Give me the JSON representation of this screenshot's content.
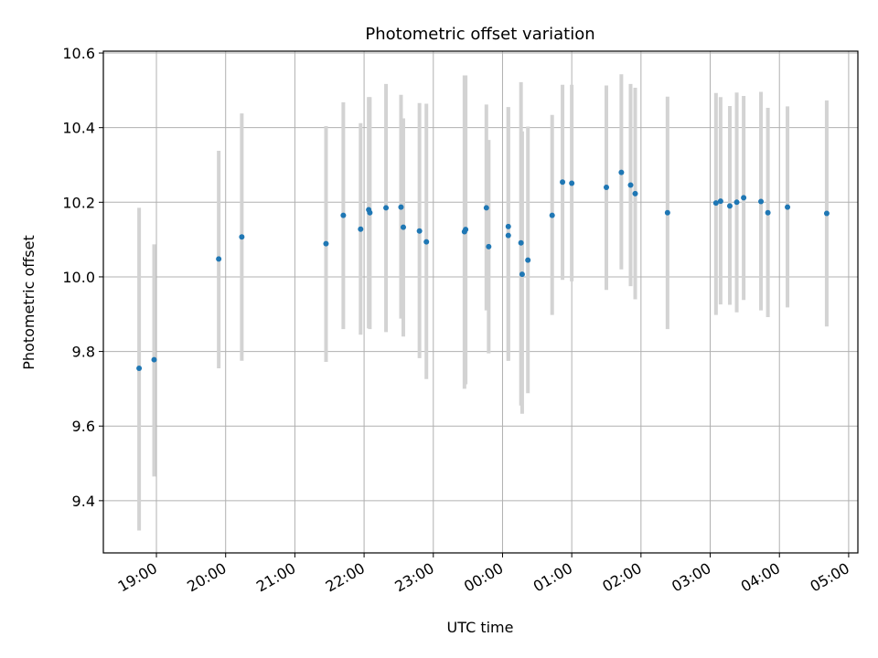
{
  "chart_data": {
    "type": "scatter",
    "title": "Photometric offset variation",
    "xlabel": "UTC time",
    "ylabel": "Photometric offset",
    "xlim": [
      "18:14",
      "24+05:08"
    ],
    "ylim": [
      9.26,
      10.605
    ],
    "grid": true,
    "point_color": "#1f77b4",
    "errorbar_color": "#d3d3d3",
    "x_ticks": [
      "19:00",
      "20:00",
      "21:00",
      "22:00",
      "23:00",
      "00:00",
      "01:00",
      "02:00",
      "03:00",
      "04:00",
      "05:00"
    ],
    "y_ticks": [
      "9.4",
      "9.6",
      "9.8",
      "10.0",
      "10.2",
      "10.4",
      "10.6"
    ],
    "points": [
      {
        "t": "18:45",
        "y": 9.755,
        "lo": 9.32,
        "hi": 10.185
      },
      {
        "t": "18:58",
        "y": 9.778,
        "lo": 9.465,
        "hi": 10.087
      },
      {
        "t": "19:54",
        "y": 10.048,
        "lo": 9.755,
        "hi": 10.338
      },
      {
        "t": "20:14",
        "y": 10.107,
        "lo": 9.775,
        "hi": 10.438
      },
      {
        "t": "21:27",
        "y": 10.089,
        "lo": 9.772,
        "hi": 10.404
      },
      {
        "t": "21:42",
        "y": 10.165,
        "lo": 9.86,
        "hi": 10.468
      },
      {
        "t": "21:57",
        "y": 10.128,
        "lo": 9.845,
        "hi": 10.412
      },
      {
        "t": "22:04",
        "y": 10.18,
        "lo": 9.862,
        "hi": 10.482
      },
      {
        "t": "22:05",
        "y": 10.172,
        "lo": 9.86,
        "hi": 10.482
      },
      {
        "t": "22:19",
        "y": 10.185,
        "lo": 9.852,
        "hi": 10.517
      },
      {
        "t": "22:32",
        "y": 10.187,
        "lo": 9.888,
        "hi": 10.488
      },
      {
        "t": "22:34",
        "y": 10.133,
        "lo": 9.84,
        "hi": 10.425
      },
      {
        "t": "22:48",
        "y": 10.123,
        "lo": 9.782,
        "hi": 10.466
      },
      {
        "t": "22:54",
        "y": 10.094,
        "lo": 9.726,
        "hi": 10.464
      },
      {
        "t": "23:27",
        "y": 10.121,
        "lo": 9.7,
        "hi": 10.54
      },
      {
        "t": "23:28",
        "y": 10.127,
        "lo": 9.712,
        "hi": 10.54
      },
      {
        "t": "23:46",
        "y": 10.185,
        "lo": 9.91,
        "hi": 10.462
      },
      {
        "t": "23:48",
        "y": 10.081,
        "lo": 9.795,
        "hi": 10.367
      },
      {
        "t": "24+00:05",
        "y": 10.135,
        "lo": 9.775,
        "hi": 10.455
      },
      {
        "t": "24+00:05",
        "y": 10.111,
        "lo": 9.775,
        "hi": 10.455
      },
      {
        "t": "24+00:16",
        "y": 10.091,
        "lo": 9.655,
        "hi": 10.522
      },
      {
        "t": "24+00:17",
        "y": 10.007,
        "lo": 9.633,
        "hi": 10.39
      },
      {
        "t": "24+00:22",
        "y": 10.045,
        "lo": 9.688,
        "hi": 10.403
      },
      {
        "t": "24+00:43",
        "y": 10.165,
        "lo": 9.898,
        "hi": 10.434
      },
      {
        "t": "24+00:52",
        "y": 10.254,
        "lo": 9.992,
        "hi": 10.515
      },
      {
        "t": "24+01:00",
        "y": 10.251,
        "lo": 9.988,
        "hi": 10.515
      },
      {
        "t": "24+01:30",
        "y": 10.24,
        "lo": 9.965,
        "hi": 10.513
      },
      {
        "t": "24+01:43",
        "y": 10.28,
        "lo": 10.02,
        "hi": 10.543
      },
      {
        "t": "24+01:51",
        "y": 10.246,
        "lo": 9.975,
        "hi": 10.517
      },
      {
        "t": "24+01:55",
        "y": 10.223,
        "lo": 9.94,
        "hi": 10.507
      },
      {
        "t": "24+02:23",
        "y": 10.172,
        "lo": 9.86,
        "hi": 10.483
      },
      {
        "t": "24+03:05",
        "y": 10.198,
        "lo": 9.898,
        "hi": 10.493
      },
      {
        "t": "24+03:09",
        "y": 10.203,
        "lo": 9.926,
        "hi": 10.482
      },
      {
        "t": "24+03:17",
        "y": 10.19,
        "lo": 9.925,
        "hi": 10.458
      },
      {
        "t": "24+03:23",
        "y": 10.2,
        "lo": 9.905,
        "hi": 10.494
      },
      {
        "t": "24+03:29",
        "y": 10.212,
        "lo": 9.938,
        "hi": 10.485
      },
      {
        "t": "24+03:44",
        "y": 10.202,
        "lo": 9.91,
        "hi": 10.496
      },
      {
        "t": "24+03:50",
        "y": 10.172,
        "lo": 9.892,
        "hi": 10.453
      },
      {
        "t": "24+04:07",
        "y": 10.187,
        "lo": 9.918,
        "hi": 10.457
      },
      {
        "t": "24+04:41",
        "y": 10.17,
        "lo": 9.867,
        "hi": 10.473
      }
    ]
  }
}
